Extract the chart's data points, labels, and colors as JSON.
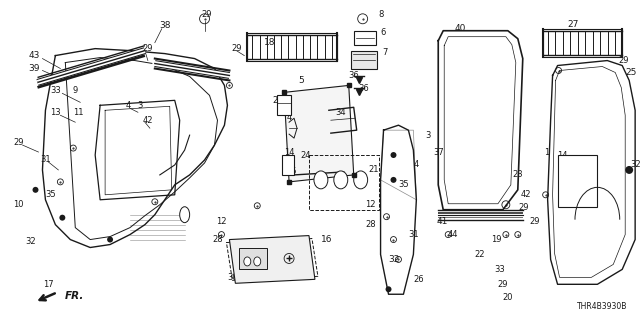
{
  "bg_color": "#ffffff",
  "line_color": "#1a1a1a",
  "text_color": "#1a1a1a",
  "figsize": [
    6.4,
    3.2
  ],
  "dpi": 100,
  "diagram_ref": "THR4B3930B"
}
